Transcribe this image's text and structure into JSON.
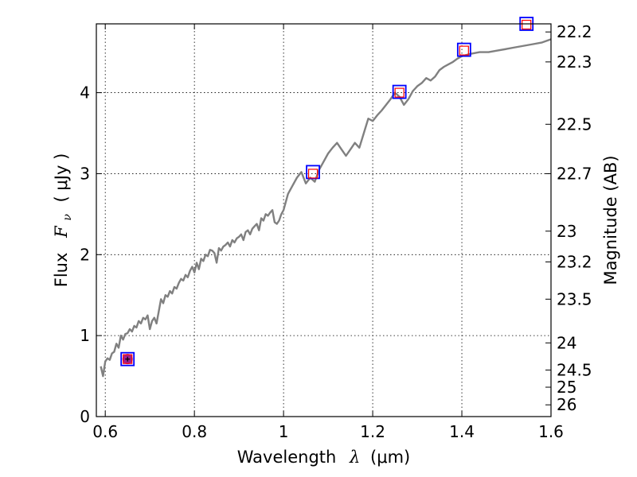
{
  "chart_data": {
    "type": "line",
    "title": "",
    "xlabel": {
      "prefix": "Wavelength",
      "symbol": "λ",
      "unit": "(μm)"
    },
    "ylabel": {
      "prefix": "Flux",
      "symbol": "F",
      "subscript": "ν",
      "unit": "( μJy )"
    },
    "ylabel_right": "Magnitude (AB)",
    "xlim": [
      0.58,
      1.6
    ],
    "ylim": [
      0,
      4.85
    ],
    "x_ticks": [
      0.6,
      0.8,
      1.0,
      1.2,
      1.4,
      1.6
    ],
    "x_tick_labels": [
      "0.6",
      "0.8",
      "1",
      "1.2",
      "1.4",
      "1.6"
    ],
    "y_ticks": [
      0,
      1,
      2,
      3,
      4
    ],
    "y_tick_labels": [
      "0",
      "1",
      "2",
      "3",
      "4"
    ],
    "right_ticks": [
      {
        "flux": 4.75,
        "label": "22.2"
      },
      {
        "flux": 4.38,
        "label": "22.3"
      },
      {
        "flux": 3.61,
        "label": "22.5"
      },
      {
        "flux": 3.0,
        "label": "22.7"
      },
      {
        "flux": 2.29,
        "label": "23"
      },
      {
        "flux": 1.91,
        "label": "23.2"
      },
      {
        "flux": 1.45,
        "label": "23.5"
      },
      {
        "flux": 0.91,
        "label": "24"
      },
      {
        "flux": 0.575,
        "label": "24.5"
      },
      {
        "flux": 0.363,
        "label": "25"
      },
      {
        "flux": 0.145,
        "label": "26"
      }
    ],
    "grid": true,
    "series": [
      {
        "kind": "spectrum",
        "color": "#808080",
        "x": [
          0.59,
          0.595,
          0.6,
          0.605,
          0.61,
          0.615,
          0.62,
          0.625,
          0.63,
          0.635,
          0.64,
          0.645,
          0.65,
          0.655,
          0.66,
          0.665,
          0.67,
          0.675,
          0.68,
          0.685,
          0.69,
          0.695,
          0.7,
          0.705,
          0.71,
          0.715,
          0.72,
          0.725,
          0.73,
          0.735,
          0.74,
          0.745,
          0.75,
          0.755,
          0.76,
          0.765,
          0.77,
          0.775,
          0.78,
          0.785,
          0.79,
          0.795,
          0.8,
          0.805,
          0.81,
          0.815,
          0.82,
          0.825,
          0.83,
          0.835,
          0.84,
          0.845,
          0.85,
          0.855,
          0.86,
          0.865,
          0.87,
          0.875,
          0.88,
          0.885,
          0.89,
          0.895,
          0.9,
          0.905,
          0.91,
          0.915,
          0.92,
          0.925,
          0.93,
          0.935,
          0.94,
          0.945,
          0.95,
          0.955,
          0.96,
          0.965,
          0.97,
          0.975,
          0.98,
          0.985,
          0.99,
          0.995,
          1.0,
          1.005,
          1.01,
          1.02,
          1.03,
          1.04,
          1.05,
          1.06,
          1.07,
          1.08,
          1.09,
          1.1,
          1.11,
          1.12,
          1.13,
          1.14,
          1.15,
          1.16,
          1.17,
          1.18,
          1.19,
          1.2,
          1.21,
          1.22,
          1.23,
          1.24,
          1.25,
          1.26,
          1.27,
          1.28,
          1.29,
          1.3,
          1.31,
          1.32,
          1.33,
          1.34,
          1.35,
          1.36,
          1.37,
          1.38,
          1.39,
          1.4,
          1.42,
          1.44,
          1.46,
          1.48,
          1.5,
          1.52,
          1.54,
          1.56,
          1.58,
          1.6
        ],
        "y": [
          0.62,
          0.5,
          0.68,
          0.72,
          0.7,
          0.78,
          0.8,
          0.9,
          0.85,
          1.0,
          0.95,
          1.02,
          1.03,
          1.08,
          1.05,
          1.12,
          1.1,
          1.18,
          1.15,
          1.22,
          1.2,
          1.25,
          1.08,
          1.18,
          1.22,
          1.15,
          1.3,
          1.45,
          1.4,
          1.5,
          1.48,
          1.55,
          1.52,
          1.6,
          1.58,
          1.65,
          1.7,
          1.68,
          1.75,
          1.72,
          1.8,
          1.85,
          1.78,
          1.9,
          1.82,
          1.95,
          1.92,
          2.0,
          1.98,
          2.06,
          2.05,
          2.02,
          1.9,
          2.08,
          2.05,
          2.1,
          2.12,
          2.15,
          2.1,
          2.18,
          2.15,
          2.2,
          2.22,
          2.25,
          2.18,
          2.28,
          2.3,
          2.25,
          2.32,
          2.35,
          2.38,
          2.3,
          2.45,
          2.42,
          2.5,
          2.48,
          2.52,
          2.55,
          2.4,
          2.38,
          2.42,
          2.5,
          2.55,
          2.65,
          2.75,
          2.85,
          2.95,
          3.02,
          2.88,
          2.95,
          2.9,
          3.05,
          3.15,
          3.25,
          3.32,
          3.38,
          3.3,
          3.22,
          3.3,
          3.38,
          3.32,
          3.5,
          3.68,
          3.65,
          3.72,
          3.78,
          3.85,
          3.92,
          4.0,
          3.95,
          3.85,
          3.92,
          4.02,
          4.08,
          4.12,
          4.18,
          4.15,
          4.2,
          4.28,
          4.32,
          4.35,
          4.38,
          4.42,
          4.45,
          4.48,
          4.5,
          4.5,
          4.52,
          4.54,
          4.56,
          4.58,
          4.6,
          4.62,
          4.66
        ]
      },
      {
        "kind": "photometry",
        "marker": "square",
        "edge_color": "#0000ff",
        "x": [
          0.65,
          1.066,
          1.26,
          1.405,
          1.545
        ],
        "y": [
          0.71,
          3.02,
          4.01,
          4.53,
          4.85
        ]
      },
      {
        "kind": "model",
        "marker": "square",
        "edge_color": "#ff0000",
        "x": [
          0.65,
          1.066,
          1.26,
          1.405,
          1.545
        ],
        "y": [
          0.71,
          3.0,
          4.0,
          4.52,
          4.84
        ]
      }
    ],
    "highlight_point": {
      "x": 0.65,
      "y": 0.71,
      "color": "#a0208f"
    }
  }
}
